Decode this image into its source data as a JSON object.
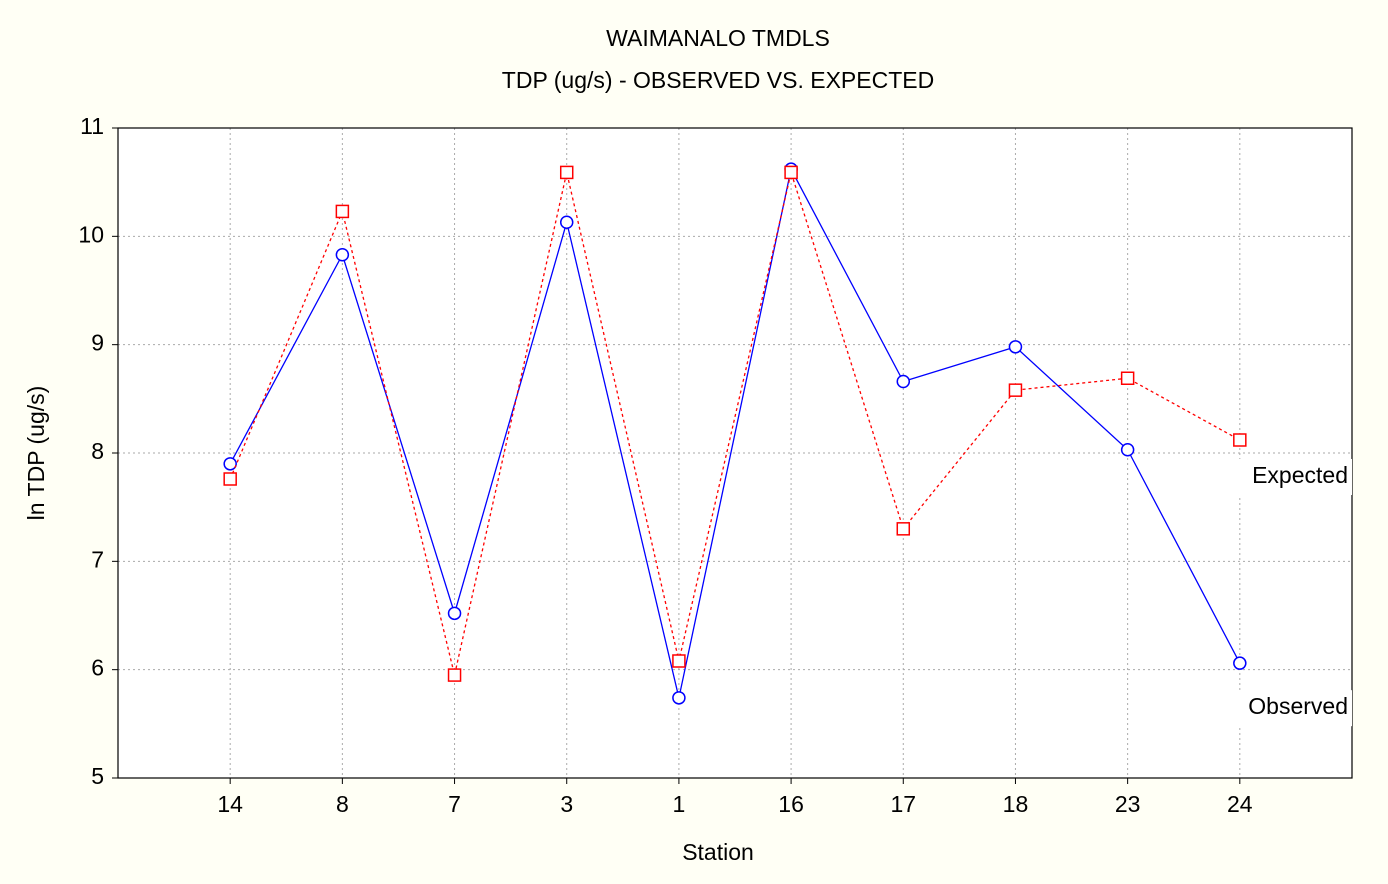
{
  "chart_data": {
    "type": "line",
    "title": "WAIMANALO TMDLS",
    "subtitle": "TDP (ug/s) - OBSERVED VS. EXPECTED",
    "x_label": "Station",
    "y_label": "ln TDP (ug/s)",
    "categories": [
      "14",
      "8",
      "7",
      "3",
      "1",
      "16",
      "17",
      "18",
      "23",
      "24"
    ],
    "series": [
      {
        "name": "Observed",
        "color": "#0000ff",
        "marker": "circle",
        "linestyle": "solid",
        "values": [
          7.9,
          9.83,
          6.52,
          10.13,
          5.74,
          10.62,
          8.66,
          8.98,
          8.03,
          6.06
        ]
      },
      {
        "name": "Expected",
        "color": "#ff0000",
        "marker": "square",
        "linestyle": "dotted",
        "values": [
          7.76,
          10.23,
          5.95,
          10.59,
          6.08,
          10.59,
          7.3,
          8.58,
          8.69,
          8.12
        ]
      }
    ],
    "ylim": [
      5,
      11
    ],
    "yticks": [
      5,
      6,
      7,
      8,
      9,
      10,
      11
    ],
    "grid": true
  }
}
